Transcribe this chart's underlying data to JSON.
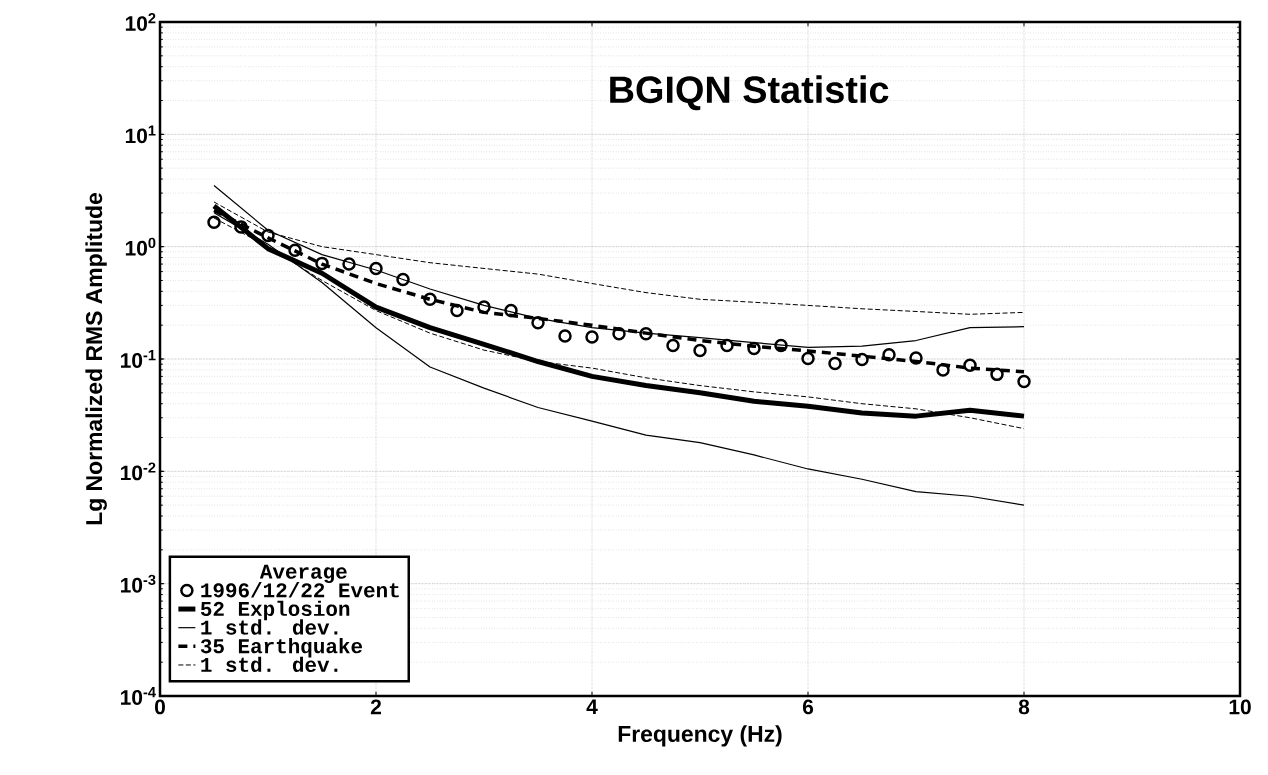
{
  "chart_data": {
    "type": "line",
    "title": "BGIQN Statistic",
    "xlabel": "Frequency (Hz)",
    "ylabel": "Lg Normalized RMS Amplitude",
    "legend_title": "Average",
    "xlim": [
      0,
      10
    ],
    "ylim": [
      0.0001,
      100
    ],
    "log": "y",
    "grid": true,
    "legend": "bottom left",
    "xticks": [
      0,
      2,
      4,
      6,
      8,
      10
    ],
    "yticks": [
      {
        "value": 0.0001,
        "label": "10$^{-4}$"
      },
      {
        "value": 0.001,
        "label": "10$^{-3}$"
      },
      {
        "value": 0.01,
        "label": "10$^{-2}$"
      },
      {
        "value": 0.1,
        "label": "10$^{-1}$"
      },
      {
        "value": 1,
        "label": "10$^{0}$"
      },
      {
        "value": 10,
        "label": "10$^{1}$"
      },
      {
        "value": 100,
        "label": "10$^{2}$"
      }
    ],
    "series": [
      {
        "name": "1996/12/22 Event",
        "type": "scatter",
        "marker": "circle",
        "color": "#000000",
        "x": [
          0.5,
          0.75,
          1.0,
          1.25,
          1.5,
          1.75,
          2.0,
          2.25,
          2.5,
          2.75,
          3.0,
          3.25,
          3.5,
          3.75,
          4.0,
          4.25,
          4.5,
          4.75,
          5.0,
          5.25,
          5.5,
          5.75,
          6.0,
          6.25,
          6.5,
          6.75,
          7.0,
          7.25,
          7.5,
          7.75,
          8.0
        ],
        "values": [
          1.65,
          1.5,
          1.26,
          0.93,
          0.71,
          0.7,
          0.64,
          0.51,
          0.34,
          0.27,
          0.29,
          0.27,
          0.21,
          0.16,
          0.157,
          0.168,
          0.168,
          0.132,
          0.119,
          0.132,
          0.124,
          0.132,
          0.101,
          0.091,
          0.099,
          0.109,
          0.102,
          0.08,
          0.088,
          0.073,
          0.063
        ]
      },
      {
        "name": "52 Explosion",
        "line_style": "solid",
        "color": "#000000",
        "x": [
          0.5,
          1.0,
          1.5,
          2.0,
          2.5,
          3.0,
          3.5,
          4.0,
          4.5,
          5.0,
          5.5,
          6.0,
          6.5,
          7.0,
          7.5,
          8.0
        ],
        "values": [
          2.3,
          0.96,
          0.58,
          0.29,
          0.19,
          0.135,
          0.095,
          0.07,
          0.058,
          0.05,
          0.042,
          0.038,
          0.033,
          0.031,
          0.035,
          0.031
        ]
      },
      {
        "name": "1 std. dev.",
        "line_style": "solid",
        "color": "#000000",
        "x": [
          0.5,
          1.0,
          1.5,
          2.0,
          2.5,
          3.0,
          3.5,
          4.0,
          4.5,
          5.0,
          5.5,
          6.0,
          6.5,
          7.0,
          7.5,
          8.0
        ],
        "values": [
          3.5,
          1.4,
          0.85,
          0.62,
          0.42,
          0.3,
          0.23,
          0.19,
          0.17,
          0.155,
          0.14,
          0.127,
          0.13,
          0.146,
          0.19,
          0.194
        ]
      },
      {
        "line_style": "solid",
        "color": "#000000",
        "x": [
          0.5,
          1.0,
          1.5,
          2.0,
          2.5,
          3.0,
          3.5,
          4.0,
          4.5,
          5.0,
          5.5,
          6.0,
          6.5,
          7.0,
          7.5,
          8.0
        ],
        "values": [
          2.0,
          1.05,
          0.48,
          0.19,
          0.085,
          0.055,
          0.037,
          0.028,
          0.021,
          0.018,
          0.014,
          0.0105,
          0.0085,
          0.0066,
          0.006,
          0.005
        ]
      },
      {
        "name": "35 Earthquake",
        "line_style": "dashed",
        "color": "#000000",
        "x": [
          0.5,
          1.0,
          1.5,
          2.0,
          2.5,
          3.0,
          3.5,
          4.0,
          4.5,
          5.0,
          5.5,
          6.0,
          6.5,
          7.0,
          7.5,
          8.0
        ],
        "values": [
          2.1,
          1.2,
          0.7,
          0.47,
          0.34,
          0.26,
          0.23,
          0.2,
          0.17,
          0.146,
          0.13,
          0.118,
          0.106,
          0.095,
          0.083,
          0.077
        ]
      },
      {
        "name": "1 std. dev.",
        "line_style": "dashed",
        "color": "#000000",
        "x": [
          0.5,
          1.0,
          1.5,
          2.0,
          2.5,
          3.0,
          3.5,
          4.0,
          4.5,
          5.0,
          5.5,
          6.0,
          6.5,
          7.0,
          7.5,
          8.0
        ],
        "values": [
          2.5,
          1.35,
          1.0,
          0.85,
          0.72,
          0.64,
          0.57,
          0.47,
          0.39,
          0.34,
          0.32,
          0.3,
          0.28,
          0.265,
          0.25,
          0.26
        ]
      },
      {
        "line_style": "dashed",
        "color": "#000000",
        "x": [
          0.5,
          1.0,
          1.5,
          2.0,
          2.5,
          3.0,
          3.5,
          4.0,
          4.5,
          5.0,
          5.5,
          6.0,
          6.5,
          7.0,
          7.5,
          8.0
        ],
        "values": [
          1.8,
          1.0,
          0.5,
          0.27,
          0.17,
          0.12,
          0.095,
          0.083,
          0.068,
          0.058,
          0.051,
          0.046,
          0.04,
          0.036,
          0.03,
          0.024
        ]
      }
    ]
  }
}
